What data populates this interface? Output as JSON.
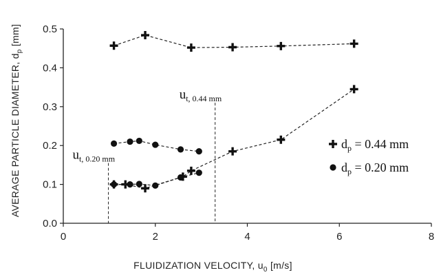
{
  "chart_data": {
    "type": "scatter",
    "xlabel": "FLUIDIZATION VELOCITY, u",
    "xlabel_sub": "0",
    "xlabel_unit": " [m/s]",
    "ylabel": "AVERAGE PARTICLE DIAMETER, d",
    "ylabel_sub": "p",
    "ylabel_unit": " [mm]",
    "xlim": [
      0,
      8
    ],
    "ylim": [
      0,
      0.5
    ],
    "xticks": [
      0,
      2,
      4,
      6,
      8
    ],
    "xtick_labels": [
      "0",
      "2",
      "4",
      "6",
      "8"
    ],
    "yticks": [
      0,
      0.1,
      0.2,
      0.3,
      0.4,
      0.5
    ],
    "ytick_labels": [
      "0.0",
      "0.1",
      "0.2",
      "0.3",
      "0.4",
      "0.5"
    ],
    "grid": false,
    "legend_position": "center-right",
    "series": [
      {
        "name": "dp = 0.44 mm",
        "label_main": "d",
        "label_sub": "p",
        "label_rest": " = 0.44 mm",
        "marker": "plus",
        "linestyle": "dashed",
        "groups": [
          {
            "x": [
              1.1,
              1.78,
              2.78,
              3.68,
              4.73,
              6.32
            ],
            "y": [
              0.457,
              0.484,
              0.452,
              0.453,
              0.456,
              0.462
            ]
          },
          {
            "x": [
              1.1,
              1.35,
              1.78,
              2.6,
              2.78,
              3.68,
              4.73,
              6.32
            ],
            "y": [
              0.1,
              0.1,
              0.09,
              0.12,
              0.135,
              0.185,
              0.215,
              0.345
            ]
          }
        ]
      },
      {
        "name": "dp = 0.20 mm",
        "label_main": "d",
        "label_sub": "p",
        "label_rest": " = 0.20 mm",
        "marker": "circle",
        "linestyle": "dashed",
        "groups": [
          {
            "x": [
              1.1,
              1.45,
              1.65,
              2.0,
              2.55,
              2.95
            ],
            "y": [
              0.205,
              0.21,
              0.212,
              0.202,
              0.19,
              0.185
            ]
          },
          {
            "x": [
              1.1,
              1.45,
              1.65,
              2.0,
              2.55,
              2.95
            ],
            "y": [
              0.1,
              0.1,
              0.101,
              0.097,
              0.118,
              0.13
            ]
          }
        ]
      }
    ],
    "annotations": [
      {
        "text_main": "u",
        "text_sub": "t, 0.20 mm",
        "x": 0.98,
        "y_top": 0.155
      },
      {
        "text_main": "u",
        "text_sub": "t, 0.44 mm",
        "x": 3.3,
        "y_top": 0.31
      }
    ]
  }
}
